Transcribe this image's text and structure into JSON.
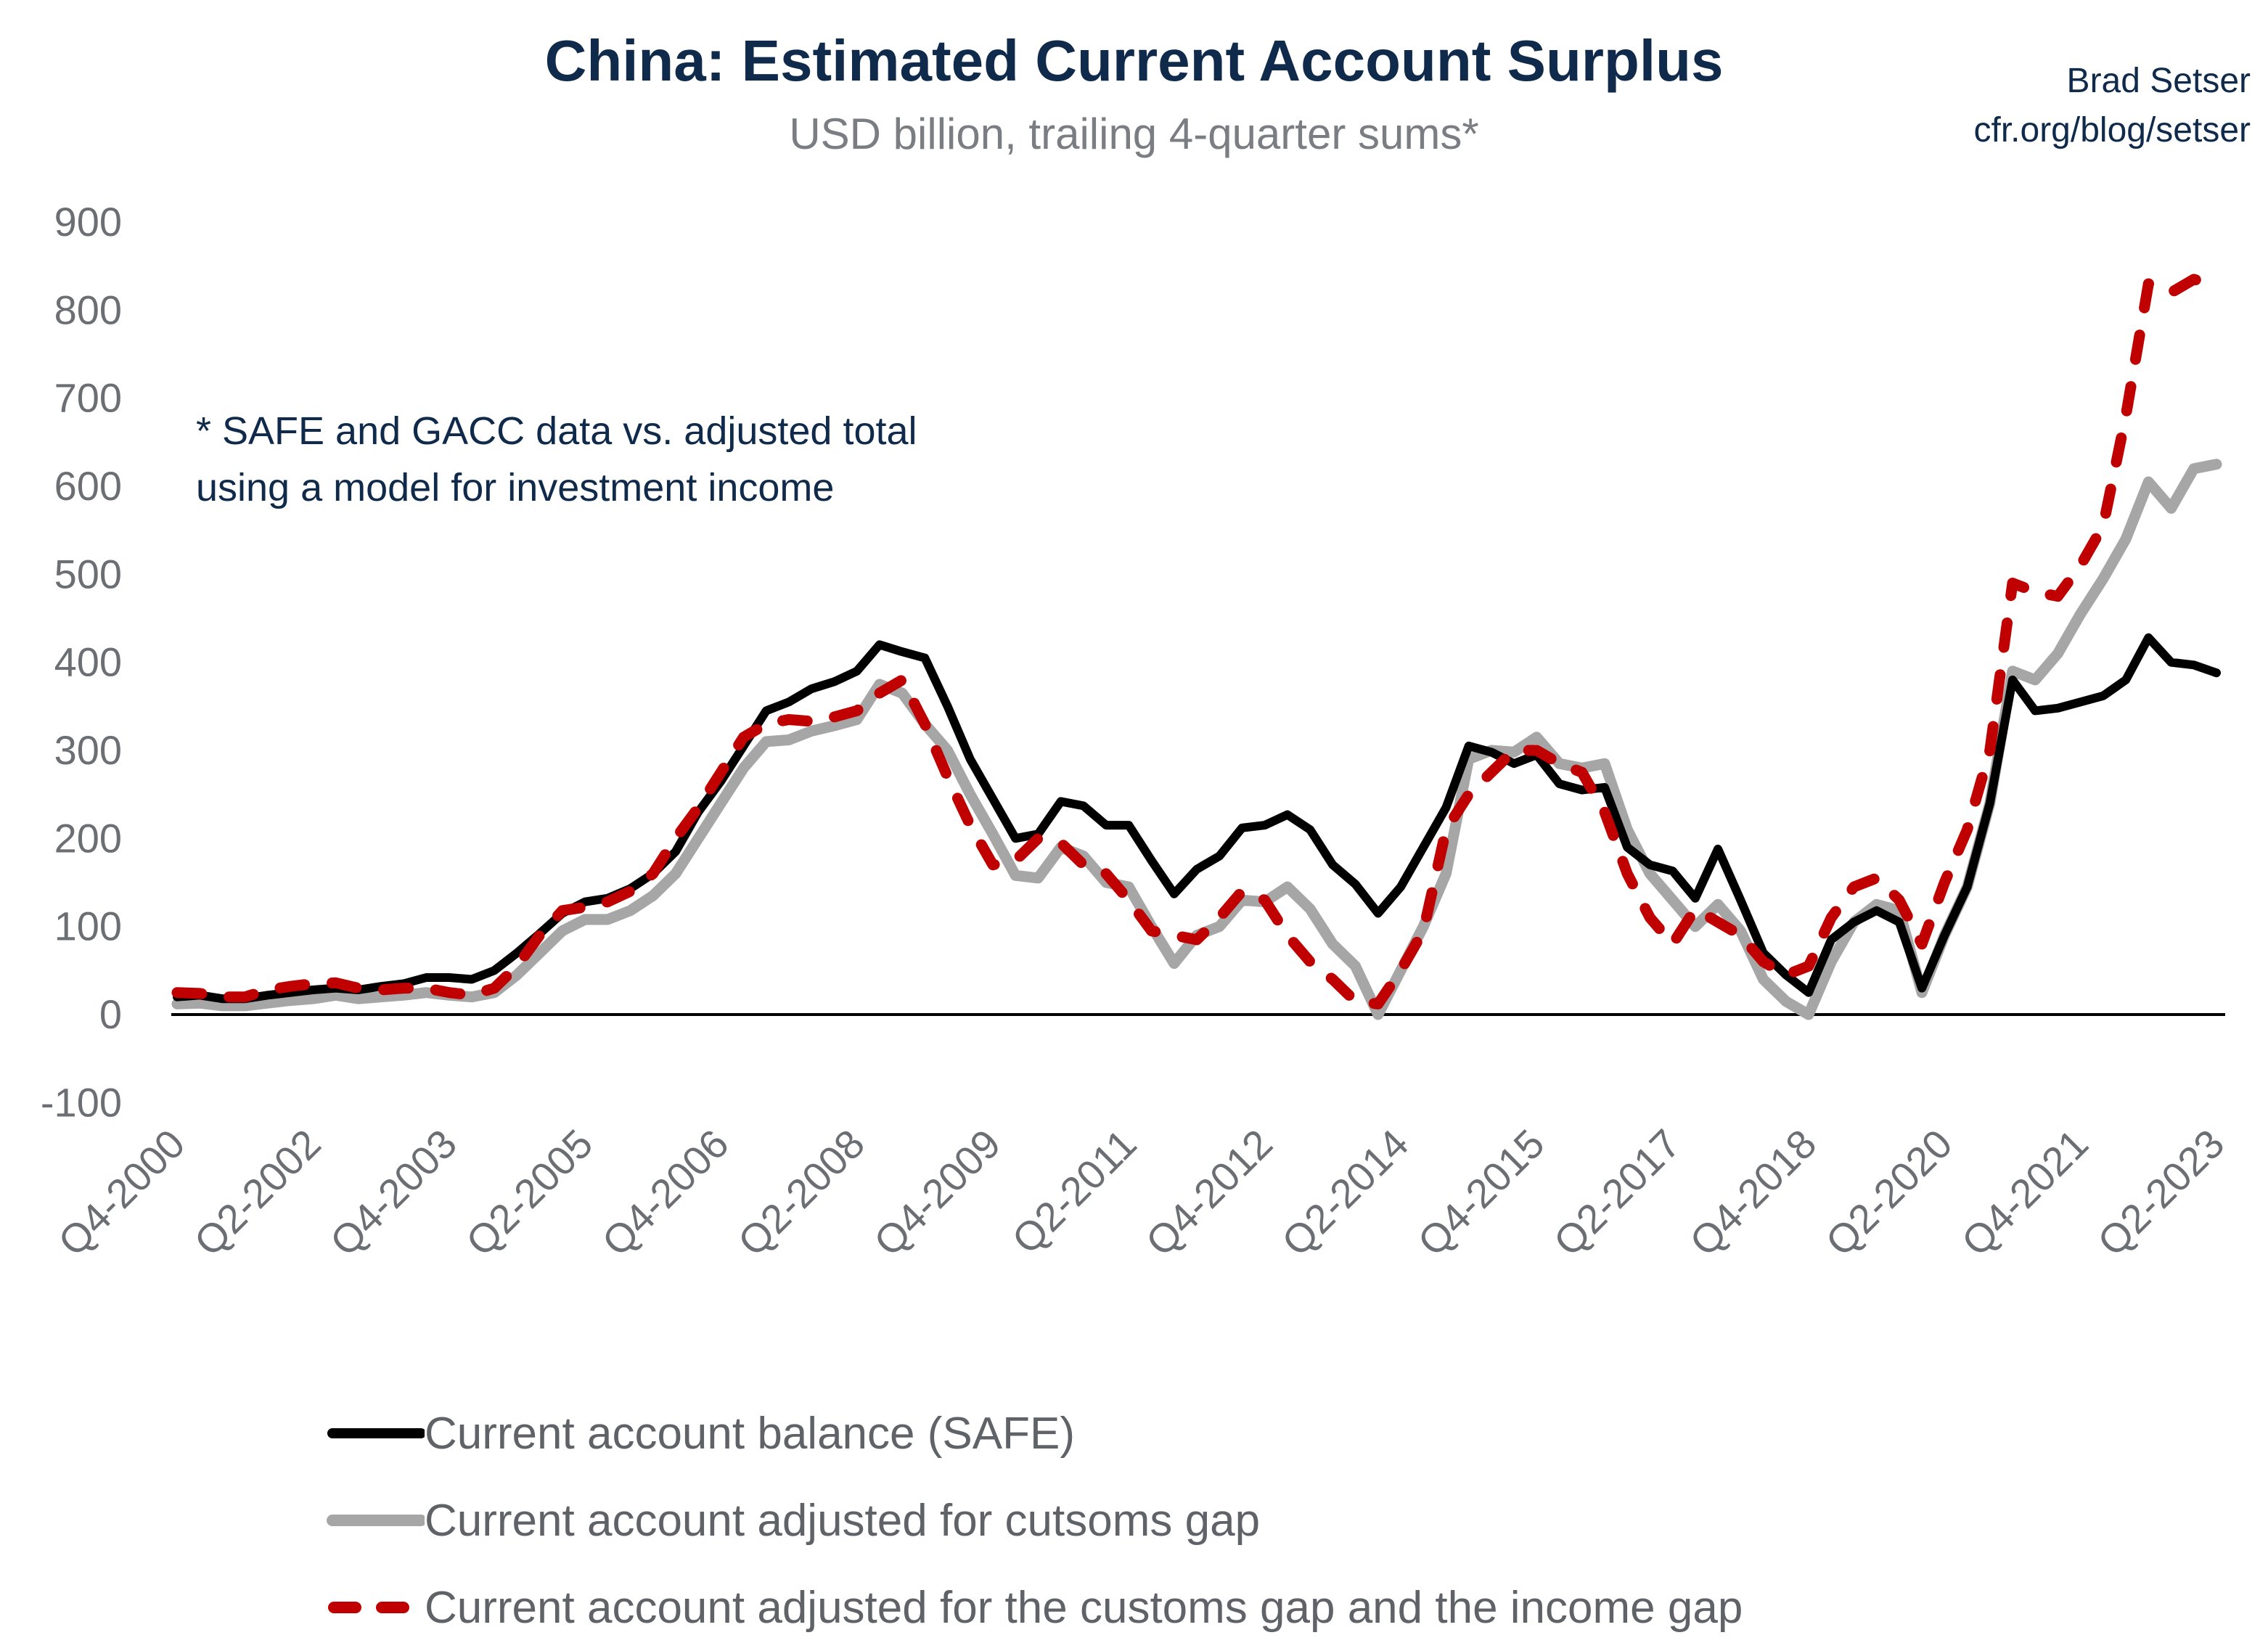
{
  "chart_data": {
    "type": "line",
    "title": "China: Estimated Current Account Surplus",
    "subtitle": "USD billion, trailing 4-quarter sums*",
    "credit": [
      "Brad Setser",
      "cfr.org/blog/setser"
    ],
    "annotation": [
      "* SAFE and GACC data vs. adjusted total",
      "using a model for investment income"
    ],
    "xlabel": "",
    "ylabel": "",
    "ylim": [
      -100,
      900
    ],
    "yticks": [
      "900",
      "800",
      "700",
      "600",
      "500",
      "400",
      "300",
      "200",
      "100",
      "0",
      "-100"
    ],
    "ytick_values": [
      900,
      800,
      700,
      600,
      500,
      400,
      300,
      200,
      100,
      0,
      -100
    ],
    "grid": false,
    "legend_position": "bottom",
    "x": [
      "Q4-2000",
      "Q1-2001",
      "Q2-2001",
      "Q3-2001",
      "Q4-2001",
      "Q1-2002",
      "Q2-2002",
      "Q3-2002",
      "Q4-2002",
      "Q1-2003",
      "Q2-2003",
      "Q3-2003",
      "Q4-2003",
      "Q1-2004",
      "Q2-2004",
      "Q3-2004",
      "Q4-2004",
      "Q1-2005",
      "Q2-2005",
      "Q3-2005",
      "Q4-2005",
      "Q1-2006",
      "Q2-2006",
      "Q3-2006",
      "Q4-2006",
      "Q1-2007",
      "Q2-2007",
      "Q3-2007",
      "Q4-2007",
      "Q1-2008",
      "Q2-2008",
      "Q3-2008",
      "Q4-2008",
      "Q1-2009",
      "Q2-2009",
      "Q3-2009",
      "Q4-2009",
      "Q1-2010",
      "Q2-2010",
      "Q3-2010",
      "Q4-2010",
      "Q1-2011",
      "Q2-2011",
      "Q3-2011",
      "Q4-2011",
      "Q1-2012",
      "Q2-2012",
      "Q3-2012",
      "Q4-2012",
      "Q1-2013",
      "Q2-2013",
      "Q3-2013",
      "Q4-2013",
      "Q1-2014",
      "Q2-2014",
      "Q3-2014",
      "Q4-2014",
      "Q1-2015",
      "Q2-2015",
      "Q3-2015",
      "Q4-2015",
      "Q1-2016",
      "Q2-2016",
      "Q3-2016",
      "Q4-2016",
      "Q1-2017",
      "Q2-2017",
      "Q3-2017",
      "Q4-2017",
      "Q1-2018",
      "Q2-2018",
      "Q3-2018",
      "Q4-2018",
      "Q1-2019",
      "Q2-2019",
      "Q3-2019",
      "Q4-2019",
      "Q1-2020",
      "Q2-2020",
      "Q3-2020",
      "Q4-2020",
      "Q1-2021",
      "Q2-2021",
      "Q3-2021",
      "Q4-2021",
      "Q1-2022",
      "Q2-2022",
      "Q3-2022",
      "Q4-2022",
      "Q1-2023",
      "Q2-2023"
    ],
    "xticks": [
      "Q4-2000",
      "Q2-2002",
      "Q4-2003",
      "Q2-2005",
      "Q4-2006",
      "Q2-2008",
      "Q4-2009",
      "Q2-2011",
      "Q4-2012",
      "Q2-2014",
      "Q4-2015",
      "Q2-2017",
      "Q4-2018",
      "Q2-2020",
      "Q4-2021",
      "Q2-2023"
    ],
    "series": [
      {
        "name": "Current account balance (SAFE)",
        "color": "#000000",
        "style": "solid",
        "values": [
          20,
          22,
          18,
          18,
          22,
          25,
          28,
          30,
          28,
          32,
          35,
          42,
          42,
          40,
          50,
          70,
          92,
          115,
          128,
          132,
          143,
          160,
          185,
          230,
          265,
          305,
          345,
          355,
          370,
          378,
          390,
          420,
          412,
          405,
          350,
          290,
          245,
          200,
          205,
          242,
          237,
          215,
          215,
          175,
          137,
          165,
          180,
          212,
          215,
          227,
          210,
          170,
          148,
          115,
          145,
          190,
          235,
          305,
          298,
          285,
          295,
          262,
          255,
          258,
          190,
          170,
          163,
          132,
          188,
          130,
          70,
          45,
          25,
          85,
          105,
          118,
          105,
          30,
          90,
          145,
          240,
          380,
          345,
          348,
          355,
          362,
          380,
          428,
          400,
          397,
          388
        ]
      },
      {
        "name": "Current account adjusted for cutsoms gap",
        "color": "#a6a6a6",
        "style": "solid",
        "values": [
          12,
          13,
          10,
          10,
          13,
          16,
          18,
          22,
          18,
          20,
          22,
          25,
          22,
          20,
          25,
          45,
          70,
          95,
          108,
          108,
          118,
          135,
          160,
          200,
          240,
          280,
          310,
          312,
          322,
          328,
          335,
          375,
          365,
          330,
          300,
          250,
          205,
          158,
          155,
          190,
          180,
          150,
          145,
          100,
          58,
          90,
          100,
          130,
          128,
          145,
          120,
          80,
          55,
          0,
          50,
          100,
          160,
          290,
          300,
          298,
          315,
          285,
          280,
          285,
          210,
          160,
          130,
          100,
          125,
          95,
          40,
          15,
          0,
          60,
          105,
          125,
          118,
          25,
          90,
          145,
          240,
          390,
          380,
          410,
          455,
          495,
          540,
          605,
          575,
          620,
          625
        ]
      },
      {
        "name": "Current account adjusted for the customs gap and the income gap",
        "color": "#c00000",
        "style": "dashed",
        "values": [
          25,
          24,
          20,
          20,
          28,
          32,
          35,
          36,
          30,
          28,
          30,
          30,
          25,
          22,
          30,
          55,
          90,
          118,
          122,
          128,
          140,
          160,
          200,
          235,
          275,
          315,
          330,
          335,
          333,
          338,
          345,
          365,
          380,
          330,
          270,
          215,
          170,
          175,
          200,
          195,
          170,
          160,
          130,
          95,
          90,
          85,
          110,
          140,
          130,
          90,
          60,
          40,
          15,
          12,
          50,
          95,
          210,
          250,
          275,
          300,
          300,
          285,
          275,
          230,
          160,
          110,
          80,
          120,
          105,
          90,
          60,
          45,
          55,
          110,
          145,
          155,
          130,
          80,
          150,
          210,
          300,
          490,
          480,
          475,
          510,
          555,
          680,
          830,
          820,
          835,
          828
        ]
      }
    ]
  }
}
